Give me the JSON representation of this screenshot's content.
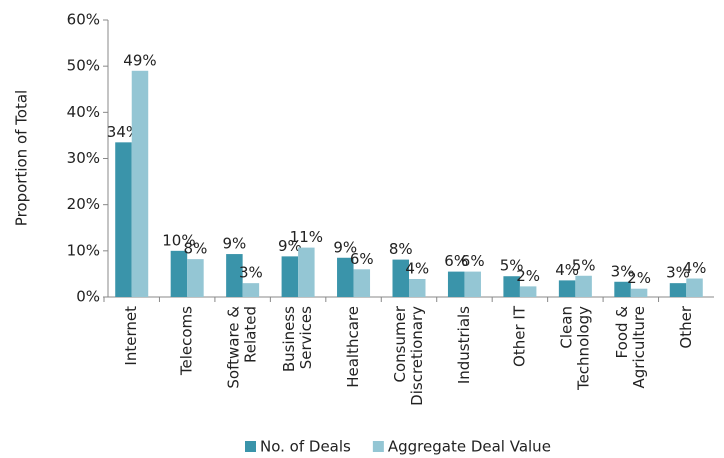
{
  "chart_data": {
    "type": "bar",
    "y_label": "Proportion of Total",
    "categories": [
      [
        "Internet"
      ],
      [
        "Telecoms"
      ],
      [
        "Software &",
        "Related"
      ],
      [
        "Business",
        "Services"
      ],
      [
        "Healthcare"
      ],
      [
        "Consumer",
        "Discretionary"
      ],
      [
        "Industrials"
      ],
      [
        "Other IT"
      ],
      [
        "Clean",
        "Technology"
      ],
      [
        "Food &",
        "Agriculture"
      ],
      [
        "Other"
      ]
    ],
    "series": [
      {
        "name": "No. of Deals",
        "color": "#3a94aa",
        "values": [
          33.5,
          10,
          9.3,
          8.8,
          8.5,
          8.1,
          5.5,
          4.5,
          3.6,
          3.3,
          3
        ],
        "value_labels": [
          "34%",
          "10%",
          "9%",
          "9%",
          "9%",
          "8%",
          "6%",
          "5%",
          "4%",
          "3%",
          "3%"
        ]
      },
      {
        "name": "Aggregate Deal Value",
        "color": "#94c6d4",
        "values": [
          49,
          8.2,
          3,
          10.7,
          6,
          3.9,
          5.5,
          2.3,
          4.6,
          1.8,
          4
        ],
        "value_labels": [
          "49%",
          "8%",
          "3%",
          "11%",
          "6%",
          "4%",
          "6%",
          "2%",
          "5%",
          "2%",
          "4%"
        ]
      }
    ],
    "ylim": [
      0,
      60
    ],
    "yticks": [
      {
        "value": 0,
        "label": "0%"
      },
      {
        "value": 10,
        "label": "10%"
      },
      {
        "value": 20,
        "label": "20%"
      },
      {
        "value": 30,
        "label": "30%"
      },
      {
        "value": 40,
        "label": "40%"
      },
      {
        "value": 50,
        "label": "50%"
      },
      {
        "value": 60,
        "label": "60%"
      }
    ],
    "legend": "bottom"
  }
}
